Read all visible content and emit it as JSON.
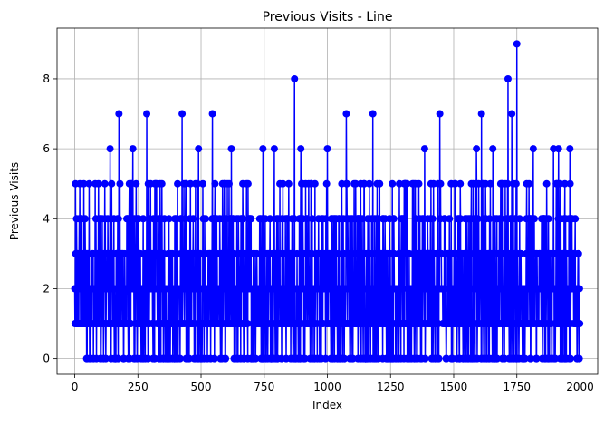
{
  "chart_data": {
    "type": "line",
    "title": "Previous Visits - Line",
    "xlabel": "Index",
    "ylabel": "Previous Visits",
    "xlim": [
      -70,
      2070
    ],
    "ylim": [
      -0.45,
      9.45
    ],
    "xticks": [
      0,
      250,
      500,
      750,
      1000,
      1250,
      1500,
      1750,
      2000
    ],
    "yticks": [
      0,
      2,
      4,
      6,
      8
    ],
    "xtick_labels": [
      "0",
      "250",
      "500",
      "750",
      "1000",
      "1250",
      "1500",
      "1750",
      "2000"
    ],
    "ytick_labels": [
      "0",
      "2",
      "4",
      "6",
      "8"
    ],
    "grid": true,
    "color": "#0000ff",
    "marker": "circle",
    "n_points": 2000,
    "peaks": [
      {
        "x": 20,
        "y": 5
      },
      {
        "x": 140,
        "y": 6
      },
      {
        "x": 175,
        "y": 7
      },
      {
        "x": 230,
        "y": 6
      },
      {
        "x": 285,
        "y": 7
      },
      {
        "x": 425,
        "y": 7
      },
      {
        "x": 490,
        "y": 6
      },
      {
        "x": 545,
        "y": 7
      },
      {
        "x": 620,
        "y": 6
      },
      {
        "x": 745,
        "y": 6
      },
      {
        "x": 790,
        "y": 6
      },
      {
        "x": 870,
        "y": 8
      },
      {
        "x": 895,
        "y": 6
      },
      {
        "x": 1000,
        "y": 6
      },
      {
        "x": 1075,
        "y": 7
      },
      {
        "x": 1180,
        "y": 7
      },
      {
        "x": 1385,
        "y": 6
      },
      {
        "x": 1445,
        "y": 7
      },
      {
        "x": 1590,
        "y": 6
      },
      {
        "x": 1610,
        "y": 7
      },
      {
        "x": 1655,
        "y": 6
      },
      {
        "x": 1715,
        "y": 8
      },
      {
        "x": 1730,
        "y": 7
      },
      {
        "x": 1750,
        "y": 9
      },
      {
        "x": 1815,
        "y": 6
      },
      {
        "x": 1895,
        "y": 6
      },
      {
        "x": 1915,
        "y": 6
      },
      {
        "x": 1960,
        "y": 6
      }
    ],
    "value_frequencies": [
      {
        "value": 0,
        "weight": 0.13
      },
      {
        "value": 1,
        "weight": 0.27
      },
      {
        "value": 2,
        "weight": 0.27
      },
      {
        "value": 3,
        "weight": 0.18
      },
      {
        "value": 4,
        "weight": 0.09
      },
      {
        "value": 5,
        "weight": 0.06
      }
    ]
  }
}
